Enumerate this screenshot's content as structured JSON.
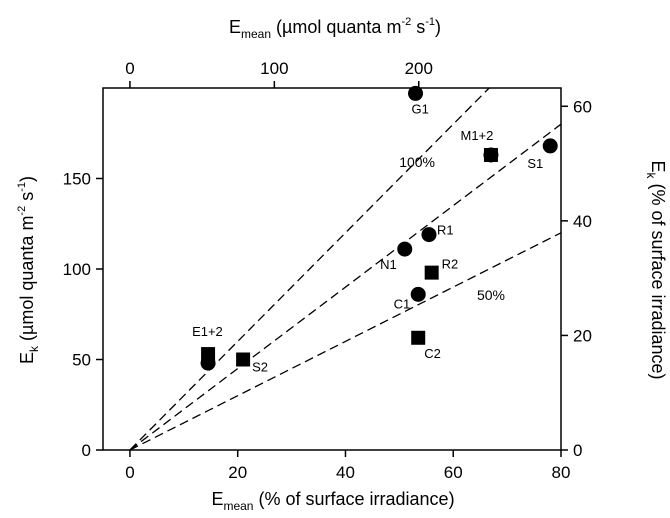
{
  "chart_data": {
    "type": "scatter",
    "title": "",
    "bottom_axis": {
      "label_main": "E",
      "label_sub": "mean",
      "label_rest": " (% of surface irradiance)",
      "range": [
        -5,
        80
      ],
      "ticks": [
        0,
        20,
        40,
        60,
        80
      ]
    },
    "top_axis": {
      "label_main": "E",
      "label_sub": "mean",
      "label_rest1": " (µmol quanta m",
      "label_sup1": "-2",
      "label_rest2": " s",
      "label_sup2": "-1",
      "label_rest3": ")",
      "ticks": [
        0,
        100,
        200
      ]
    },
    "left_axis": {
      "label_main": "E",
      "label_sub": "k",
      "label_rest1": " (µmol quanta m",
      "label_sup1": "-2",
      "label_rest2": " s",
      "label_sup2": "-1",
      "label_rest3": ")",
      "range": [
        0,
        200
      ],
      "ticks": [
        0,
        50,
        100,
        150
      ]
    },
    "right_axis": {
      "label_main": "E",
      "label_sub": "k",
      "label_rest": " (% of surface irradiance)",
      "ticks": [
        0,
        20,
        40,
        60
      ]
    },
    "reference_lines": [
      {
        "label": "100%",
        "slope": 3.0
      },
      {
        "label": "",
        "slope": 2.25
      },
      {
        "label": "50%",
        "slope": 1.5
      }
    ],
    "series": [
      {
        "marker": "circle",
        "points": [
          {
            "label": "G1",
            "x": 53,
            "y": 197
          },
          {
            "label": "M1+2",
            "x": 67,
            "y": 163
          },
          {
            "label": "S1",
            "x": 78,
            "y": 168
          },
          {
            "label": "R1",
            "x": 55.5,
            "y": 119
          },
          {
            "label": "N1",
            "x": 51,
            "y": 111
          },
          {
            "label": "C1",
            "x": 53.5,
            "y": 86
          },
          {
            "label": "E1+2",
            "x": 14.5,
            "y": 48
          }
        ]
      },
      {
        "marker": "square",
        "points": [
          {
            "label": "M1+2",
            "x": 67,
            "y": 163
          },
          {
            "label": "R2",
            "x": 56,
            "y": 98
          },
          {
            "label": "C2",
            "x": 53.5,
            "y": 62
          },
          {
            "label": "E1+2",
            "x": 14.5,
            "y": 53
          },
          {
            "label": "S2",
            "x": 21,
            "y": 50
          }
        ]
      }
    ]
  }
}
